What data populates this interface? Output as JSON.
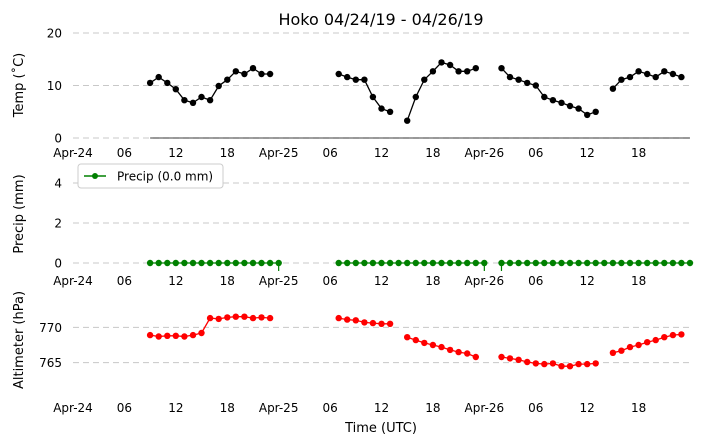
{
  "chart_data": [
    {
      "type": "line",
      "title": "Hoko 04/24/19 - 04/26/19",
      "ylabel": "Temp (˚C)",
      "ylim": [
        0,
        20
      ],
      "yticks": [
        "0",
        "10",
        "20"
      ],
      "xticks": [
        "Apr-24",
        "06",
        "12",
        "18",
        "Apr-25",
        "06",
        "12",
        "18",
        "Apr-26",
        "06",
        "12",
        "18"
      ],
      "grid": "horizontal dashed",
      "series": [
        {
          "color": "#000000",
          "segments": [
            [
              [
                9,
                10.5
              ],
              [
                10,
                11.6
              ],
              [
                11,
                10.5
              ],
              [
                12,
                9.3
              ],
              [
                13,
                7.2
              ],
              [
                14,
                6.7
              ],
              [
                15,
                7.8
              ],
              [
                16,
                7.2
              ],
              [
                17,
                9.9
              ],
              [
                18,
                11.1
              ],
              [
                19,
                12.7
              ],
              [
                20,
                12.2
              ],
              [
                21,
                13.3
              ],
              [
                22,
                12.2
              ],
              [
                23,
                12.2
              ]
            ],
            [
              [
                31,
                12.2
              ],
              [
                32,
                11.6
              ],
              [
                33,
                11.1
              ],
              [
                34,
                11.1
              ],
              [
                35,
                7.8
              ],
              [
                36,
                5.6
              ],
              [
                37,
                5.0
              ]
            ],
            [
              [
                39,
                3.3
              ],
              [
                40,
                7.8
              ],
              [
                41,
                11.1
              ],
              [
                42,
                12.7
              ],
              [
                43,
                14.4
              ],
              [
                44,
                13.9
              ],
              [
                45,
                12.7
              ],
              [
                46,
                12.7
              ],
              [
                47,
                13.3
              ]
            ],
            [
              [
                50,
                13.3
              ],
              [
                51,
                11.6
              ],
              [
                52,
                11.1
              ],
              [
                53,
                10.5
              ],
              [
                54,
                10.0
              ],
              [
                55,
                7.8
              ],
              [
                56,
                7.2
              ],
              [
                57,
                6.7
              ],
              [
                58,
                6.1
              ],
              [
                59,
                5.6
              ],
              [
                60,
                4.4
              ],
              [
                61,
                5.0
              ]
            ],
            [
              [
                63,
                9.4
              ],
              [
                64,
                11.1
              ],
              [
                65,
                11.6
              ],
              [
                66,
                12.7
              ],
              [
                67,
                12.2
              ],
              [
                68,
                11.6
              ],
              [
                69,
                12.7
              ],
              [
                70,
                12.2
              ],
              [
                71,
                11.6
              ]
            ]
          ]
        }
      ]
    },
    {
      "type": "line",
      "ylabel": "Precip (mm)",
      "ylim": [
        -0.5,
        5
      ],
      "yticks": [
        "0",
        "2",
        "4"
      ],
      "xticks": [
        "Apr-24",
        "06",
        "12",
        "18",
        "Apr-25",
        "06",
        "12",
        "18",
        "Apr-26",
        "06",
        "12",
        "18"
      ],
      "legend": {
        "label": "Precip (0.0 mm)",
        "position": "upper-left"
      },
      "series": [
        {
          "name": "Precip (0.0 mm)",
          "color": "#008000",
          "segments": [
            [
              [
                9,
                0
              ],
              [
                10,
                0
              ],
              [
                11,
                0
              ],
              [
                12,
                0
              ],
              [
                13,
                0
              ],
              [
                14,
                0
              ],
              [
                15,
                0
              ],
              [
                16,
                0
              ],
              [
                17,
                0
              ],
              [
                18,
                0
              ],
              [
                19,
                0
              ],
              [
                20,
                0
              ],
              [
                21,
                0
              ],
              [
                22,
                0
              ],
              [
                23,
                0
              ],
              [
                24,
                0
              ]
            ],
            [
              [
                31,
                0
              ],
              [
                32,
                0
              ],
              [
                33,
                0
              ],
              [
                34,
                0
              ],
              [
                35,
                0
              ],
              [
                36,
                0
              ],
              [
                37,
                0
              ],
              [
                38,
                0
              ],
              [
                39,
                0
              ],
              [
                40,
                0
              ],
              [
                41,
                0
              ],
              [
                42,
                0
              ],
              [
                43,
                0
              ],
              [
                44,
                0
              ],
              [
                45,
                0
              ],
              [
                46,
                0
              ],
              [
                47,
                0
              ],
              [
                48,
                0
              ]
            ],
            [
              [
                50,
                0
              ],
              [
                51,
                0
              ],
              [
                52,
                0
              ],
              [
                53,
                0
              ],
              [
                54,
                0
              ],
              [
                55,
                0
              ],
              [
                56,
                0
              ],
              [
                57,
                0
              ],
              [
                58,
                0
              ],
              [
                59,
                0
              ],
              [
                60,
                0
              ],
              [
                61,
                0
              ],
              [
                62,
                0
              ],
              [
                63,
                0
              ],
              [
                64,
                0
              ],
              [
                65,
                0
              ],
              [
                66,
                0
              ],
              [
                67,
                0
              ],
              [
                68,
                0
              ],
              [
                69,
                0
              ],
              [
                70,
                0
              ],
              [
                71,
                0
              ],
              [
                72,
                0
              ]
            ]
          ],
          "stems": [
            24,
            48,
            50
          ]
        }
      ]
    },
    {
      "type": "line",
      "ylabel": "Altimeter (hPa)",
      "xlabel": "Time (UTC)",
      "ylim": [
        760,
        775
      ],
      "yticks": [
        "765",
        "770"
      ],
      "xticks": [
        "Apr-24",
        "06",
        "12",
        "18",
        "Apr-25",
        "06",
        "12",
        "18",
        "Apr-26",
        "06",
        "12",
        "18"
      ],
      "series": [
        {
          "color": "#ff0000",
          "segments": [
            [
              [
                9,
                768.9
              ],
              [
                10,
                768.7
              ],
              [
                11,
                768.8
              ],
              [
                12,
                768.8
              ],
              [
                13,
                768.7
              ],
              [
                14,
                768.9
              ],
              [
                15,
                769.2
              ],
              [
                16,
                771.3
              ],
              [
                17,
                771.2
              ],
              [
                18,
                771.4
              ],
              [
                19,
                771.5
              ],
              [
                20,
                771.5
              ],
              [
                21,
                771.3
              ],
              [
                22,
                771.4
              ],
              [
                23,
                771.3
              ]
            ],
            [
              [
                31,
                771.3
              ],
              [
                32,
                771.1
              ],
              [
                33,
                771.0
              ],
              [
                34,
                770.7
              ],
              [
                35,
                770.6
              ],
              [
                36,
                770.5
              ],
              [
                37,
                770.5
              ]
            ],
            [
              [
                39,
                768.6
              ],
              [
                40,
                768.2
              ],
              [
                41,
                767.8
              ],
              [
                42,
                767.5
              ],
              [
                43,
                767.2
              ],
              [
                44,
                766.8
              ],
              [
                45,
                766.5
              ],
              [
                46,
                766.3
              ],
              [
                47,
                765.8
              ]
            ],
            [
              [
                50,
                765.8
              ],
              [
                51,
                765.6
              ],
              [
                52,
                765.4
              ],
              [
                53,
                765.1
              ],
              [
                54,
                764.9
              ],
              [
                55,
                764.8
              ],
              [
                56,
                764.9
              ],
              [
                57,
                764.5
              ],
              [
                58,
                764.5
              ],
              [
                59,
                764.8
              ],
              [
                60,
                764.8
              ],
              [
                61,
                764.9
              ]
            ],
            [
              [
                63,
                766.4
              ],
              [
                64,
                766.7
              ],
              [
                65,
                767.2
              ],
              [
                66,
                767.5
              ],
              [
                67,
                767.9
              ],
              [
                68,
                768.2
              ],
              [
                69,
                768.6
              ],
              [
                70,
                768.9
              ],
              [
                71,
                769.0
              ]
            ]
          ]
        }
      ]
    }
  ]
}
